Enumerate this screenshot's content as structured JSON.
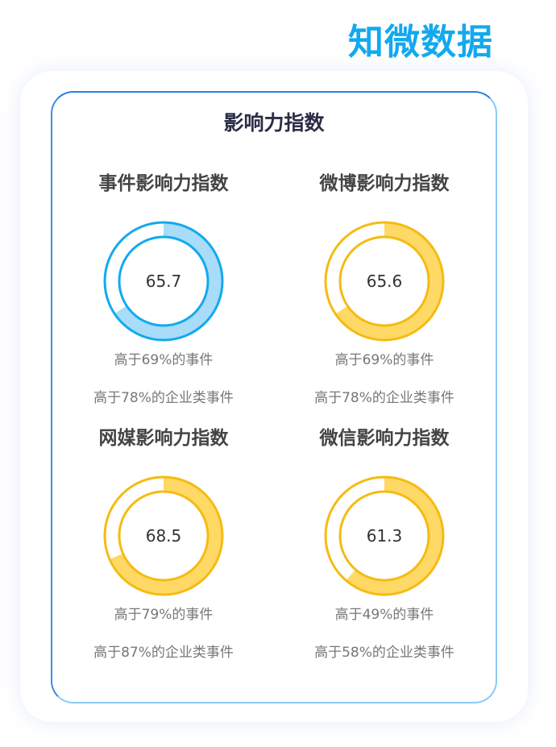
{
  "brand": "知微数据",
  "title": "影响力指数",
  "indices": [
    {
      "label": "事件影响力指数",
      "score": 65.7,
      "line1": "高于69%的事件",
      "line2": "高于78%的企业类事件",
      "color": "#12a9ef",
      "fill": "#a9dcf8"
    },
    {
      "label": "微博影响力指数",
      "score": 65.6,
      "line1": "高于69%的事件",
      "line2": "高于78%的企业类事件",
      "color": "#f5bb12",
      "fill": "#ffd966"
    },
    {
      "label": "网媒影响力指数",
      "score": 68.5,
      "line1": "高于79%的事件",
      "line2": "高于87%的企业类事件",
      "color": "#f5bb12",
      "fill": "#ffd966"
    },
    {
      "label": "微信影响力指数",
      "score": 61.3,
      "line1": "高于49%的事件",
      "line2": "高于58%的企业类事件",
      "color": "#f5bb12",
      "fill": "#ffd966"
    }
  ]
}
